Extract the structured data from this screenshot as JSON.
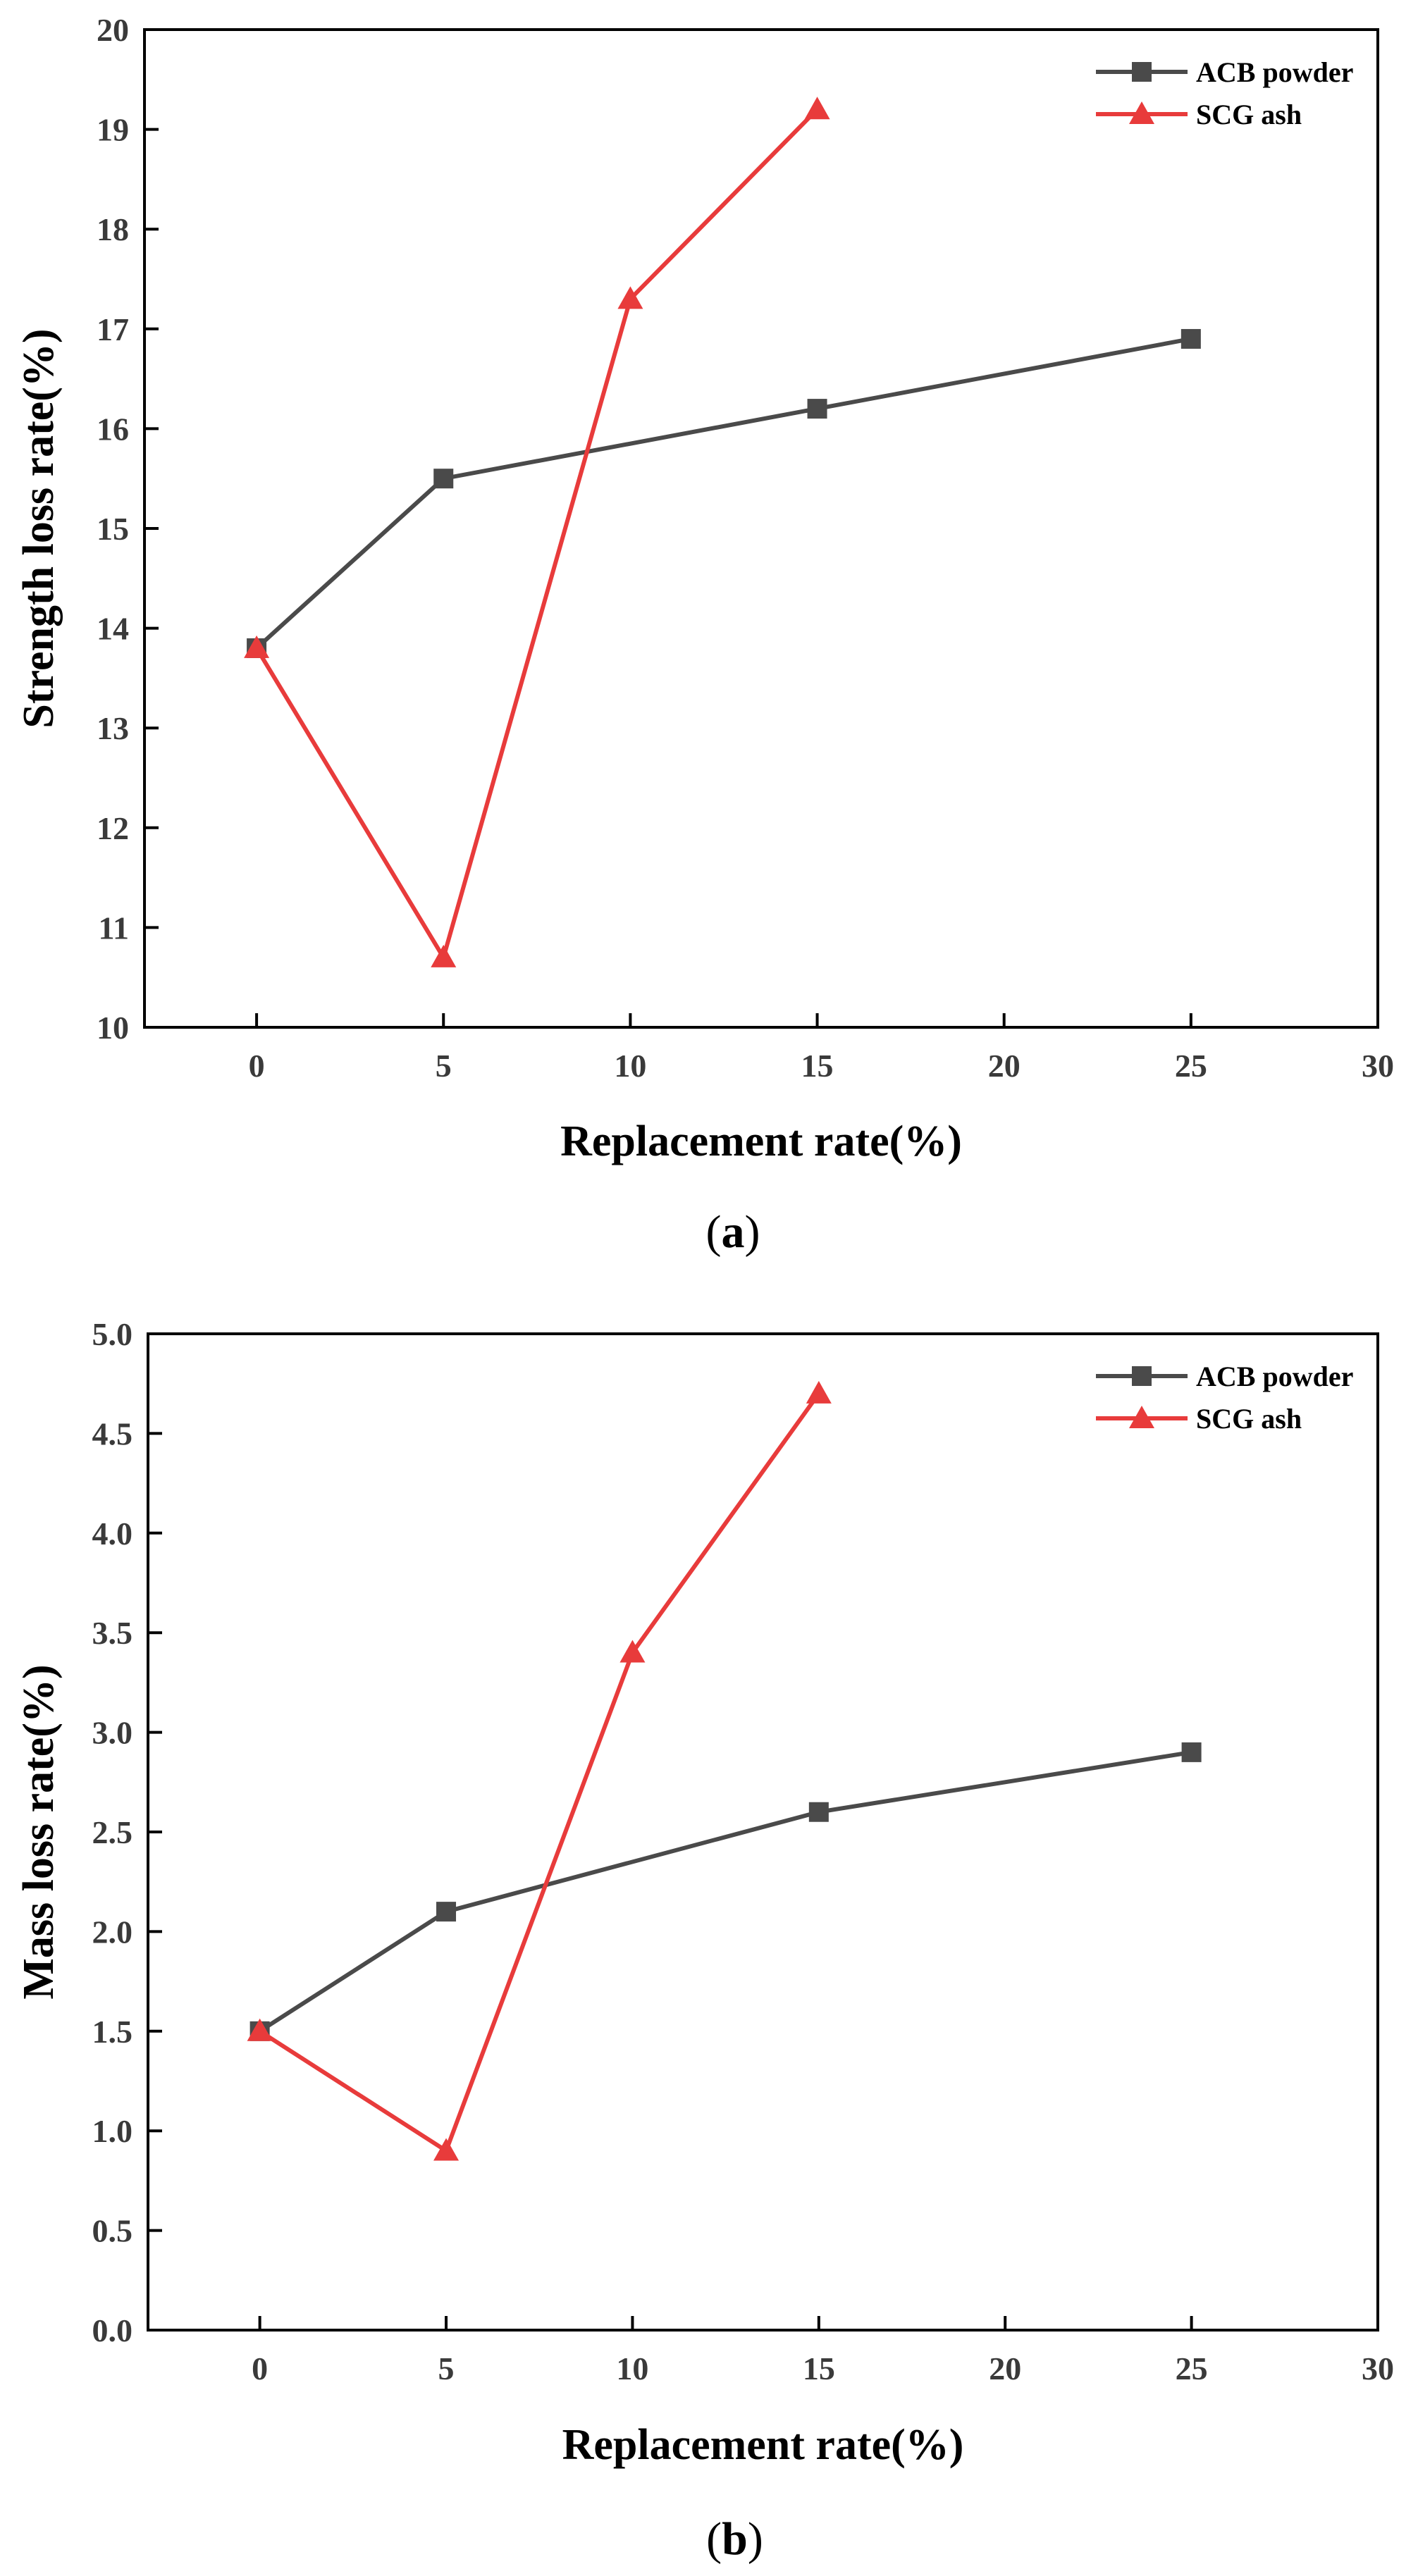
{
  "chart_data": [
    {
      "type": "line",
      "panel_label": "a",
      "title": "",
      "xlabel": "Replacement rate(%)",
      "ylabel": "Strength loss rate(%)",
      "xlim": [
        -3,
        30
      ],
      "ylim": [
        10,
        20
      ],
      "xticks": [
        "0",
        "5",
        "10",
        "15",
        "20",
        "25",
        "30"
      ],
      "yticks": [
        "10",
        "11",
        "12",
        "13",
        "14",
        "15",
        "16",
        "17",
        "18",
        "19",
        "20"
      ],
      "grid": false,
      "legend_position": "top-right",
      "series": [
        {
          "name": "ACB powder",
          "marker": "square",
          "color": "#4a4a4a",
          "x": [
            0,
            5,
            15,
            25
          ],
          "values": [
            13.8,
            15.5,
            16.2,
            16.9
          ]
        },
        {
          "name": "SCG ash",
          "marker": "triangle",
          "color": "#e83b3b",
          "x": [
            0,
            5,
            10,
            15
          ],
          "values": [
            13.8,
            10.7,
            17.3,
            19.2
          ]
        }
      ]
    },
    {
      "type": "line",
      "panel_label": "b",
      "title": "",
      "xlabel": "Replacement rate(%)",
      "ylabel": "Mass loss rate(%)",
      "xlim": [
        -3,
        30
      ],
      "ylim": [
        0,
        5
      ],
      "xticks": [
        "0",
        "5",
        "10",
        "15",
        "20",
        "25",
        "30"
      ],
      "yticks": [
        "0.0",
        "0.5",
        "1.0",
        "1.5",
        "2.0",
        "2.5",
        "3.0",
        "3.5",
        "4.0",
        "4.5",
        "5.0"
      ],
      "grid": false,
      "legend_position": "top-right",
      "series": [
        {
          "name": "ACB powder",
          "marker": "square",
          "color": "#4a4a4a",
          "x": [
            0,
            5,
            15,
            25
          ],
          "values": [
            1.5,
            2.1,
            2.6,
            2.9
          ]
        },
        {
          "name": "SCG ash",
          "marker": "triangle",
          "color": "#e83b3b",
          "x": [
            0,
            5,
            10,
            15
          ],
          "values": [
            1.5,
            0.9,
            3.4,
            4.7
          ]
        }
      ]
    }
  ]
}
